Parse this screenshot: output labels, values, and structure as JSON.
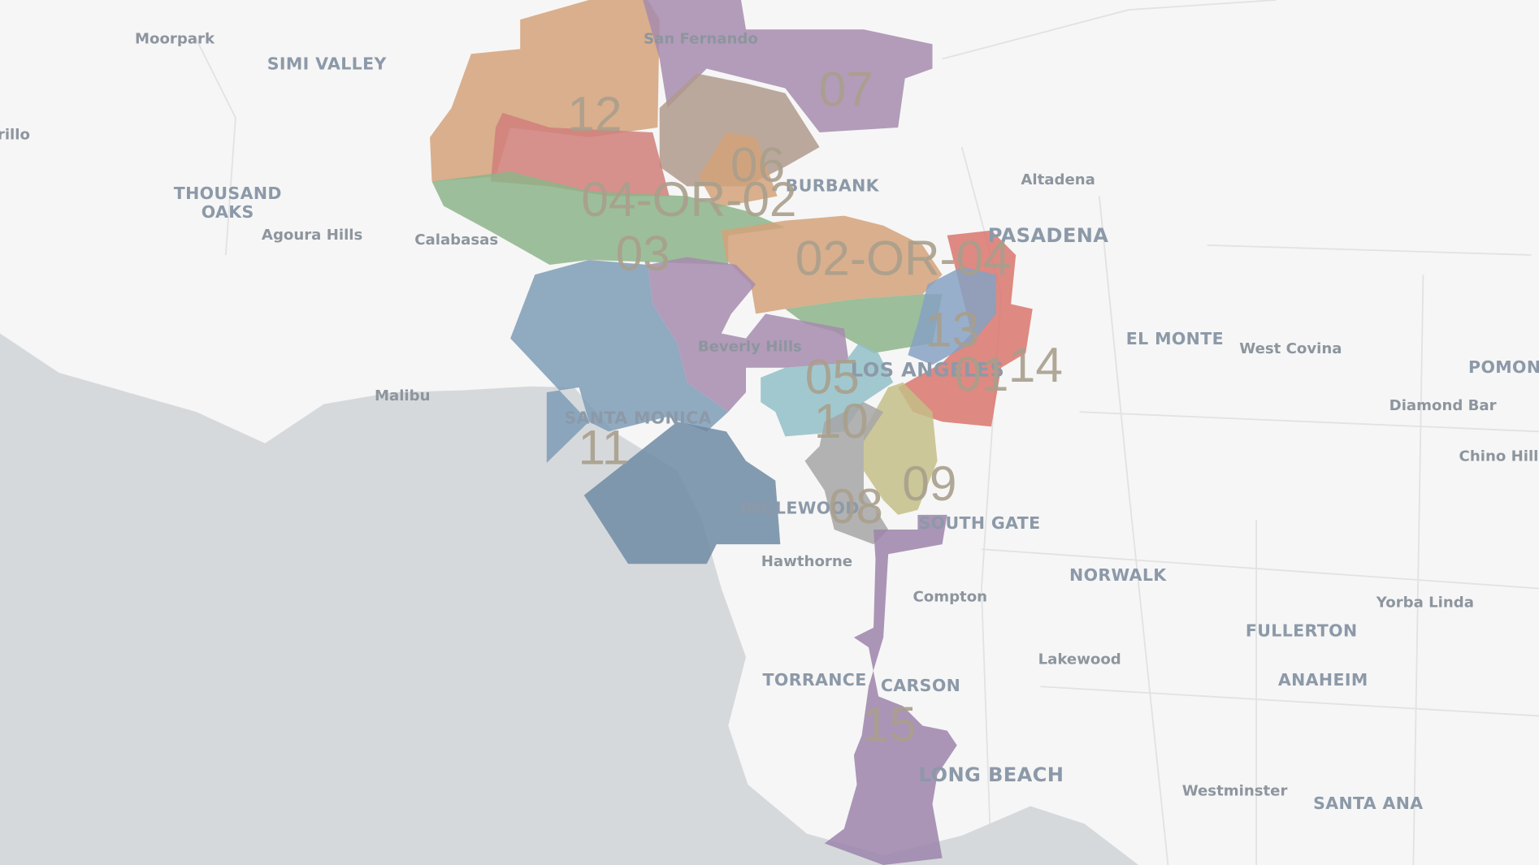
{
  "places": [
    "Moorpark",
    "SIMI VALLEY",
    "rillo",
    "THOUSAND",
    "OAKS",
    "Agoura Hills",
    "Calabasas",
    "Malibu",
    "San Fernando",
    "BURBANK",
    "Altadena",
    "PASADENA",
    "Beverly Hills",
    "LOS ANGELES",
    "EL MONTE",
    "West Covina",
    "POMON",
    "Diamond Bar",
    "Chino Hill",
    "SANTA MONICA",
    "INGLEWOOD",
    "SOUTH GATE",
    "Hawthorne",
    "Compton",
    "NORWALK",
    "Yorba Linda",
    "FULLERTON",
    "Lakewood",
    "ANAHEIM",
    "TORRANCE",
    "CARSON",
    "LONG BEACH",
    "Westminster",
    "SANTA ANA"
  ],
  "districts": [
    "12",
    "07",
    "06",
    "04-OR-02",
    "03",
    "02-OR-04",
    "13",
    "14",
    "01",
    "05",
    "10",
    "11",
    "09",
    "08",
    "15"
  ]
}
